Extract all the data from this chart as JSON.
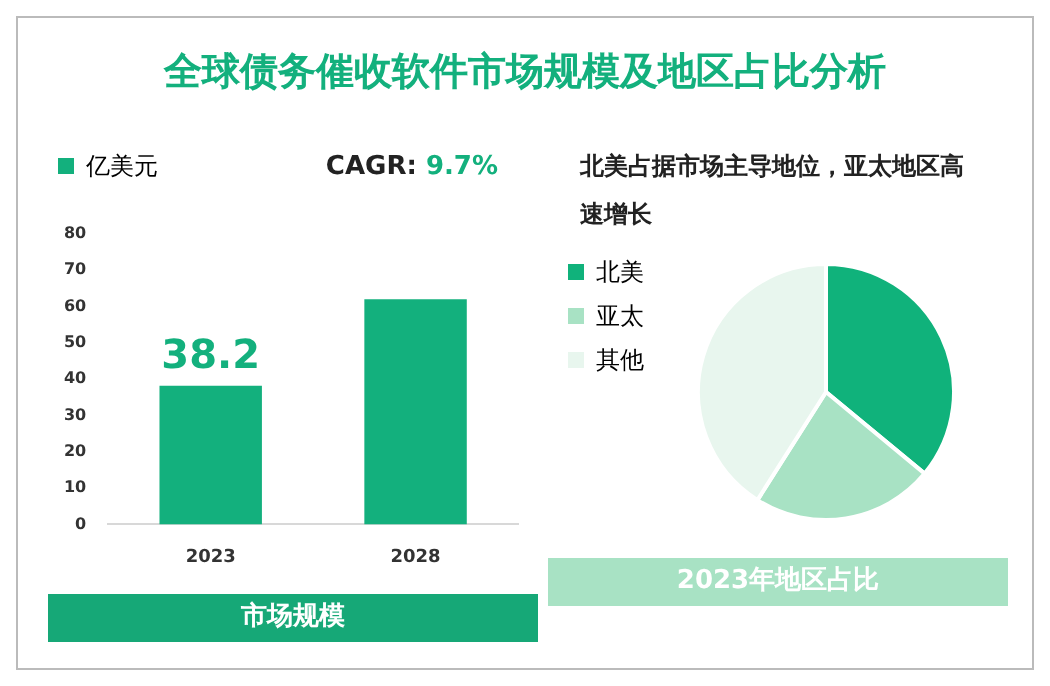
{
  "chart_data": [
    {
      "type": "bar",
      "title": "全球债务催收软件市场规模及地区占比分析",
      "categories": [
        "2023",
        "2028"
      ],
      "series": [
        {
          "name": "亿美元",
          "color": "#13b07d",
          "values": [
            38.2,
            62
          ]
        }
      ],
      "value_labels": [
        "38.2",
        null
      ],
      "ylim": [
        0,
        80
      ],
      "yticks": [
        0,
        10,
        20,
        30,
        40,
        50,
        60,
        70,
        80
      ],
      "legend": "top left",
      "annotations": [
        "CAGR: 9.7%",
        "市场规模"
      ]
    },
    {
      "type": "pie",
      "title": "北美占据市场主导地位，亚太地区高速增长",
      "categories": [
        "北美",
        "亚太",
        "其他"
      ],
      "values": [
        36,
        23,
        41
      ],
      "colors": [
        "#10b27b",
        "#a8e2c4",
        "#e8f6ee"
      ],
      "legend": "left",
      "annotations": [
        "2023年地区占比"
      ]
    }
  ]
}
